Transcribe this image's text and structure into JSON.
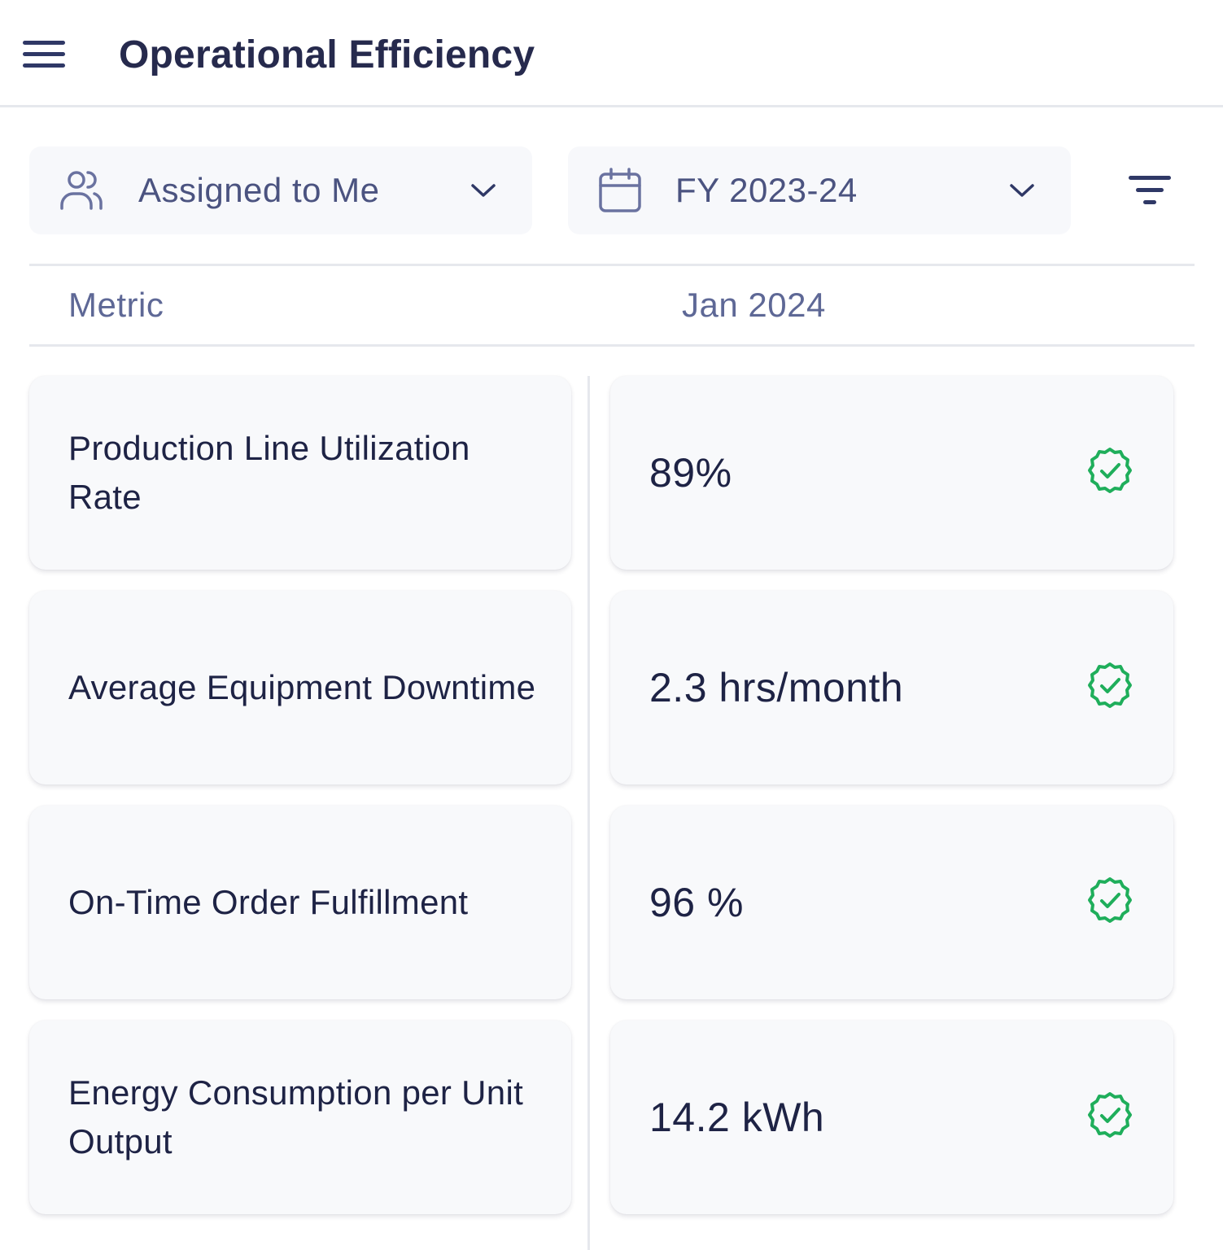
{
  "header": {
    "title": "Operational Efficiency",
    "menu_icon": "hamburger-menu-icon"
  },
  "filters": {
    "assignee": {
      "label": "Assigned to Me",
      "icon": "users-icon"
    },
    "period": {
      "label": "FY 2023-24",
      "icon": "calendar-icon"
    },
    "sort_icon": "sort-filter-icon"
  },
  "table": {
    "headers": {
      "metric": "Metric",
      "period": "Jan 2024"
    },
    "rows": [
      {
        "metric": "Production Line Utilization Rate",
        "value": "89%",
        "status": "verified"
      },
      {
        "metric": "Average Equipment Downtime",
        "value": "2.3 hrs/month",
        "status": "verified"
      },
      {
        "metric": "On-Time Order Fulfillment",
        "value": "96 %",
        "status": "verified"
      },
      {
        "metric": "Energy Consumption per Unit Output",
        "value": "14.2 kWh",
        "status": "verified"
      }
    ]
  },
  "colors": {
    "title": "#262a4d",
    "text": "#1e2345",
    "muted": "#5e6896",
    "success": "#1fae5b",
    "card_bg": "#f8f9fb",
    "divider": "#e6e8ed"
  }
}
